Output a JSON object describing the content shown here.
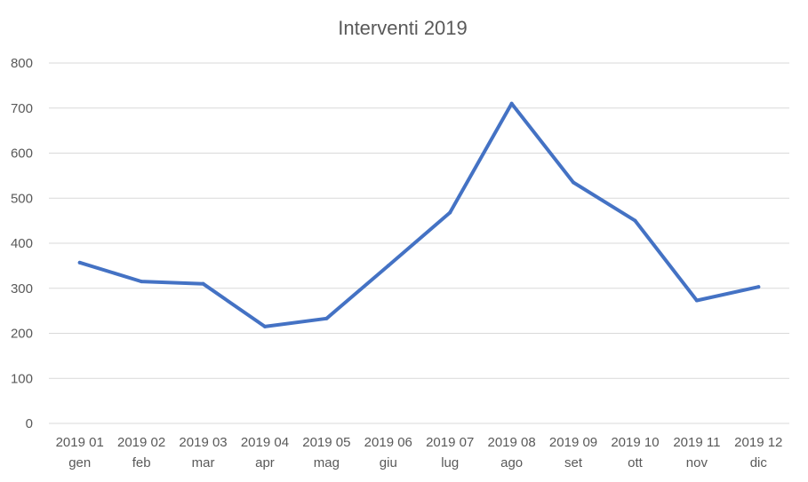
{
  "chart_data": {
    "type": "line",
    "title": "Interventi 2019",
    "xlabel": "",
    "ylabel": "",
    "categories": [
      [
        "2019 01",
        "gen"
      ],
      [
        "2019 02",
        "feb"
      ],
      [
        "2019 03",
        "mar"
      ],
      [
        "2019 04",
        "apr"
      ],
      [
        "2019 05",
        "mag"
      ],
      [
        "2019 06",
        "giu"
      ],
      [
        "2019 07",
        "lug"
      ],
      [
        "2019 08",
        "ago"
      ],
      [
        "2019 09",
        "set"
      ],
      [
        "2019 10",
        "ott"
      ],
      [
        "2019 11",
        "nov"
      ],
      [
        "2019 12",
        "dic"
      ]
    ],
    "series": [
      {
        "values": [
          357,
          315,
          310,
          215,
          233,
          350,
          468,
          710,
          535,
          450,
          273,
          303
        ],
        "color": "#4472c4"
      }
    ],
    "ylim": [
      0,
      800
    ],
    "yticks": [
      "0",
      "100",
      "200",
      "300",
      "400",
      "500",
      "600",
      "700",
      "800"
    ],
    "grid": true,
    "legend": "none"
  }
}
